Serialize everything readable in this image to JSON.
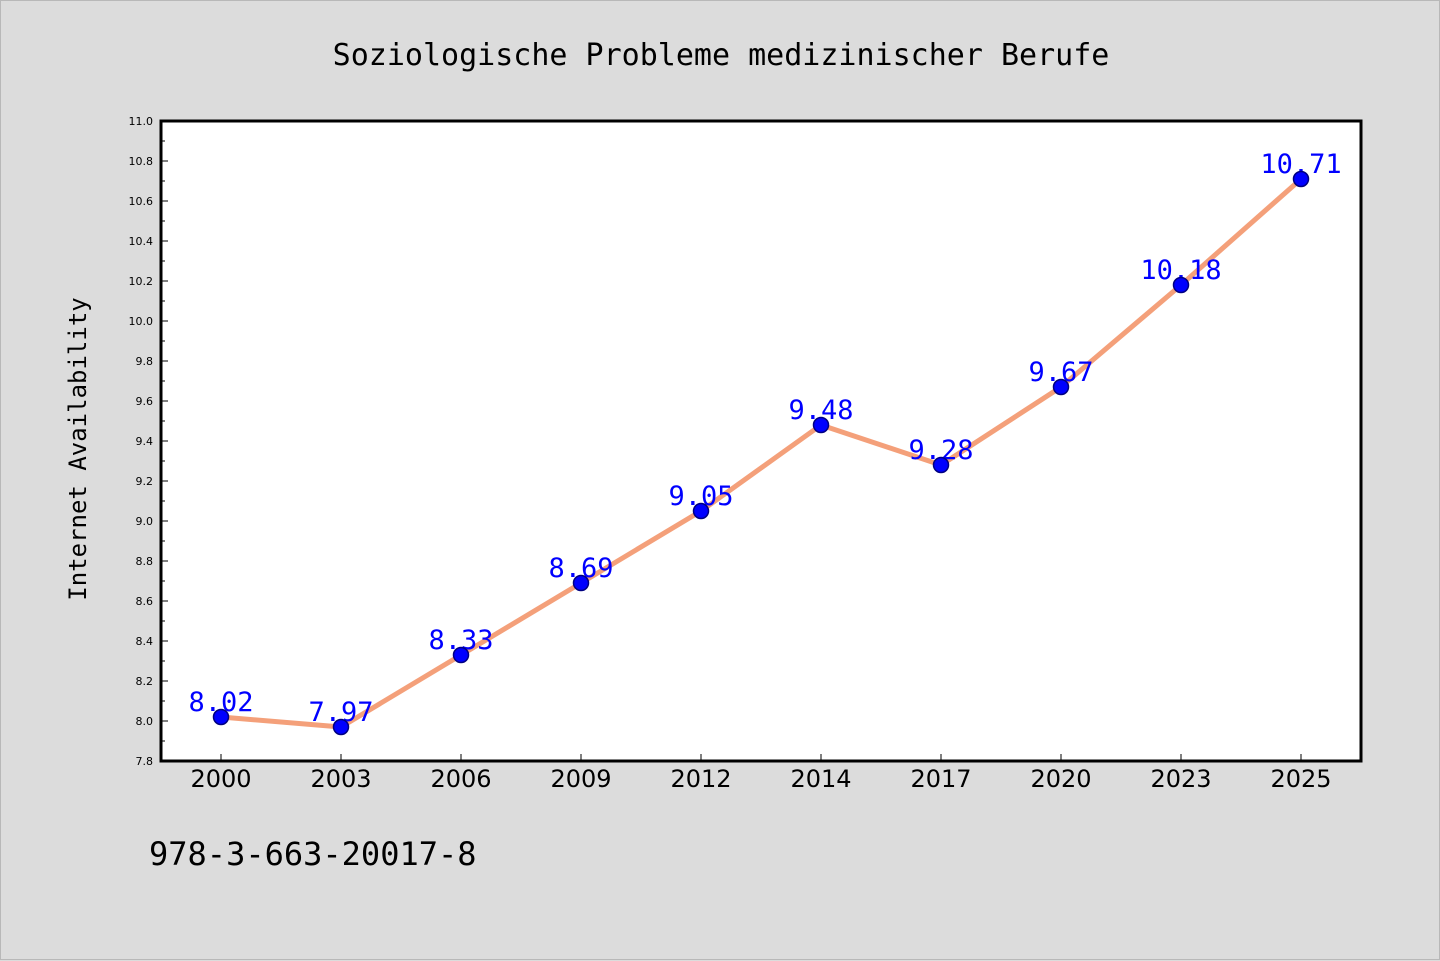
{
  "chart_data": {
    "type": "line",
    "title": "Soziologische Probleme medizinischer Berufe",
    "xlabel": "",
    "ylabel": "Internet Availability",
    "categories": [
      "2000",
      "2003",
      "2006",
      "2009",
      "2012",
      "2014",
      "2017",
      "2020",
      "2023",
      "2025"
    ],
    "values": [
      8.02,
      7.97,
      8.33,
      8.69,
      9.05,
      9.48,
      9.28,
      9.67,
      10.18,
      10.71
    ],
    "data_labels": [
      "8.02",
      "7.97",
      "8.33",
      "8.69",
      "9.05",
      "9.48",
      "9.28",
      "9.67",
      "10.18",
      "10.71"
    ],
    "ylim": [
      7.8,
      11.0
    ],
    "yticks": [
      "7.8",
      "8.0",
      "8.2",
      "8.4",
      "8.6",
      "8.8",
      "9.0",
      "9.2",
      "9.4",
      "9.6",
      "9.8",
      "10.0",
      "10.2",
      "10.4",
      "10.6",
      "10.8",
      "11.0"
    ],
    "grid": false,
    "colors": {
      "line": "#f4a07a",
      "marker_fill": "#0000ff",
      "marker_edge": "#000080",
      "data_label": "#0000ff",
      "plot_background": "#ffffff",
      "figure_background": "#dcdcdc"
    }
  },
  "footer": {
    "text": "978-3-663-20017-8"
  }
}
